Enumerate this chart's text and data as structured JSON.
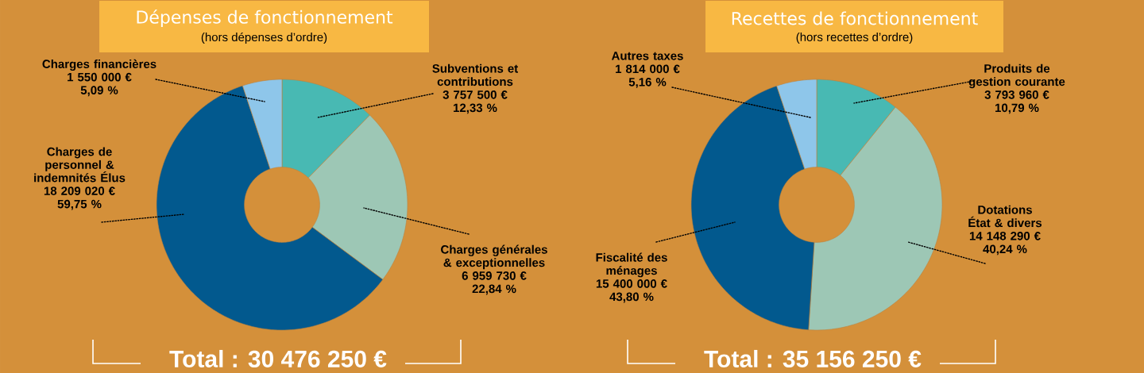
{
  "chart_data": [
    {
      "type": "donut",
      "title": "Dépenses de fonctionnement",
      "subtitle": "(hors dépenses d’ordre)",
      "categories": [
        "Subventions et contributions",
        "Charges générales & exceptionnelles",
        "Charges de personnel & indemnités Élus",
        "Charges financières"
      ],
      "values": [
        3757500,
        6959730,
        18209020,
        1550000
      ],
      "colors": [
        "#48b9b3",
        "#9dc7b5",
        "#02598e",
        "#8ec6ea"
      ],
      "value_labels": [
        "3 757 500 €",
        "6 959 730 €",
        "18 209 020 €",
        "1 550 000 €"
      ],
      "annotations": [
        "12,33 %",
        "22,84 %",
        "59,75 %",
        "5,09 %",
        "Total : 30 476 250 €"
      ]
    },
    {
      "type": "donut",
      "title": "Recettes de fonctionnement",
      "subtitle": "(hors recettes d’ordre)",
      "categories": [
        "Produits de gestion courante",
        "Dotations État & divers",
        "Fiscalité des ménages",
        "Autres taxes"
      ],
      "values": [
        3793960,
        14148290,
        15400000,
        1814000
      ],
      "colors": [
        "#48b9b3",
        "#9dc7b5",
        "#02598e",
        "#8ec6ea"
      ],
      "value_labels": [
        "3 793 960 €",
        "14 148 290 €",
        "15 400 000 €",
        "1 814 000 €"
      ],
      "annotations": [
        "10,79 %",
        "40,24 %",
        "43,80 %",
        "5,16 %",
        "Total : 35 156 250 €"
      ]
    }
  ]
}
